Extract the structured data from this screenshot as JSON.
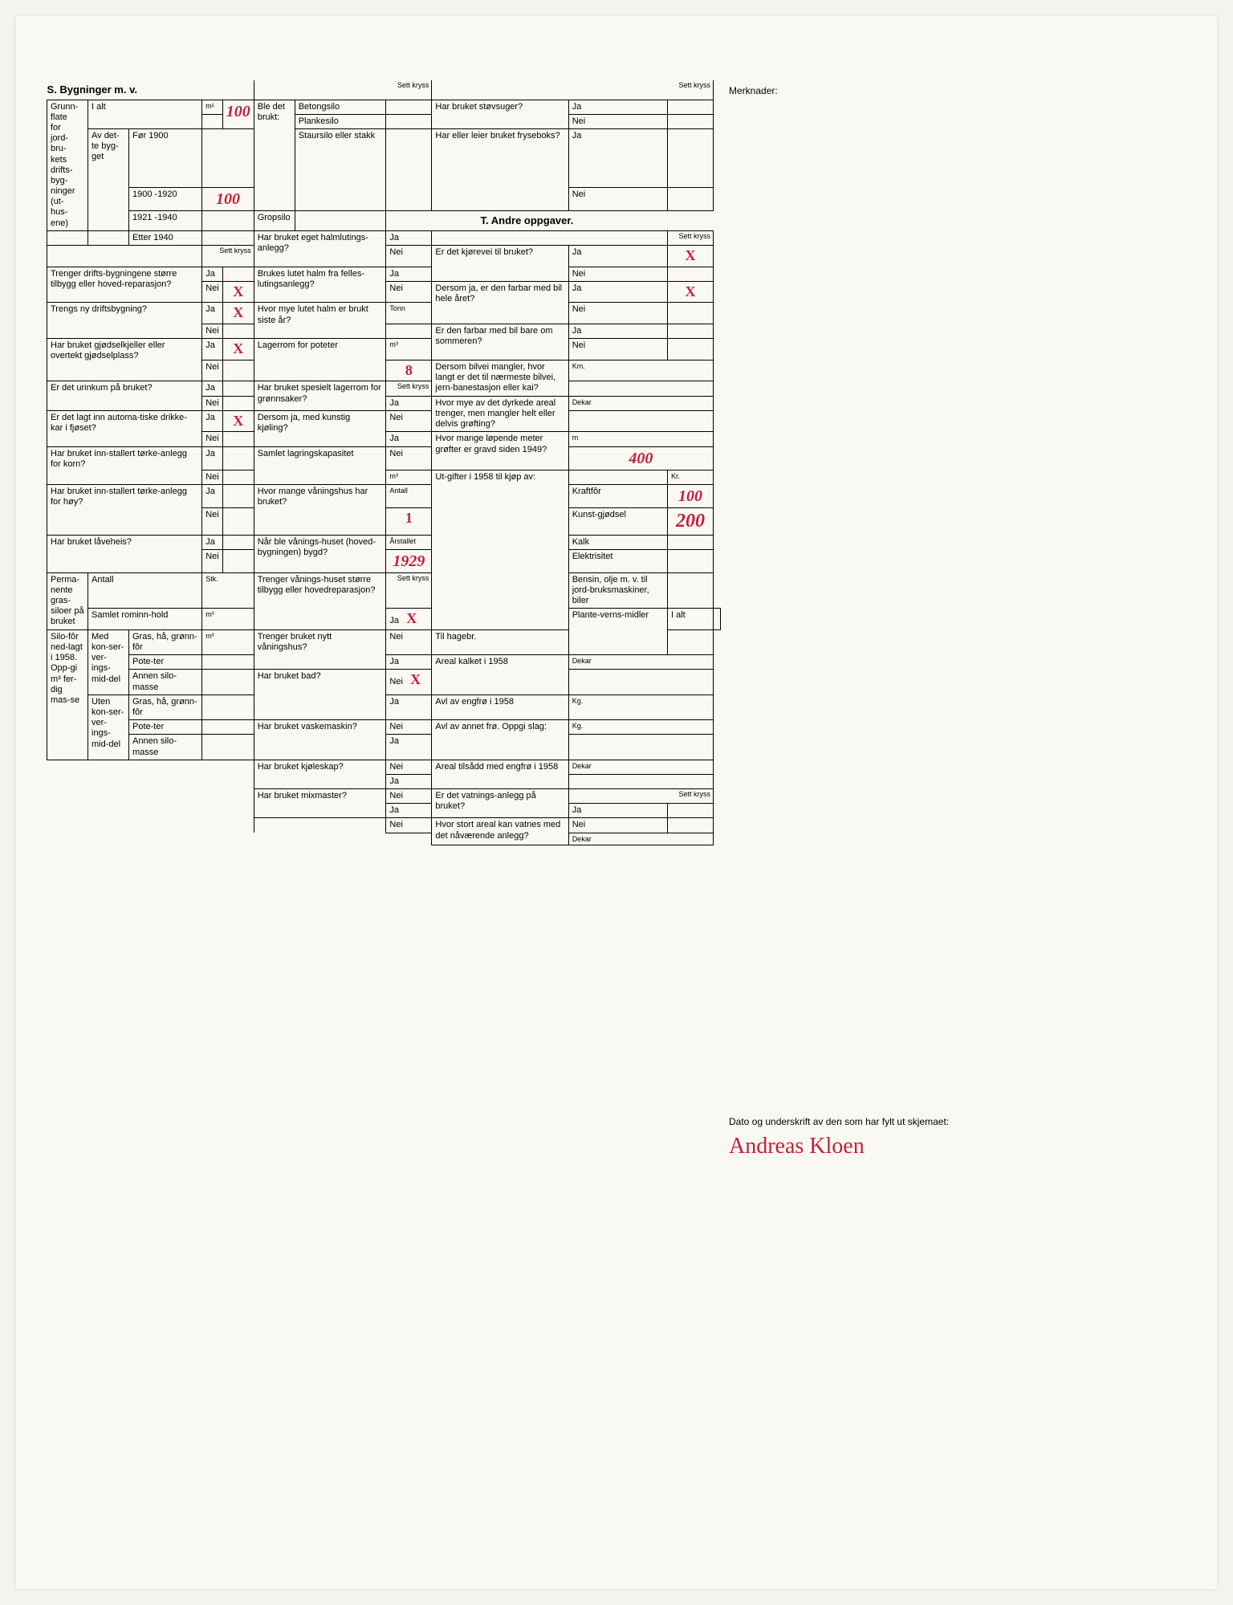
{
  "sectionS": {
    "title": "S. Bygninger m. v.",
    "grunnflate_label": "Grunn-\nflate\nfor\njord-\nbru-\nkets\ndrifts-\nbyg-\nninger\n(ut-\nhus-\nene)",
    "unit_m2": "m²",
    "i_alt": "I alt",
    "i_alt_val": "100",
    "av_dette_bygget": "Av det-te byg-get",
    "periods": {
      "for1900": "Før 1900",
      "p1900_1920": "1900 -1920",
      "p1900_1920_val": "100",
      "p1921_1940": "1921 -1940",
      "etter1940": "Etter 1940"
    },
    "sett_kryss": "Sett kryss",
    "q1": "Trenger drifts-bygningene større tilbygg eller hoved-reparasjon?",
    "q1_ja": "Ja",
    "q1_nei": "Nei",
    "q1_nei_mark": "X",
    "q2": "Trengs ny driftsbygning?",
    "q2_ja": "Ja",
    "q2_ja_mark": "X",
    "q2_nei": "Nei",
    "q3": "Har bruket gjødselkjeller eller overtekt gjødselplass?",
    "q3_ja": "Ja",
    "q3_ja_mark": "X",
    "q3_nei": "Nei",
    "q4": "Er det urinkum på bruket?",
    "q4_ja": "Ja",
    "q4_nei": "Nei",
    "q5": "Er det lagt inn automa-tiske drikke-kar i fjøset?",
    "q5_ja": "Ja",
    "q5_ja_mark": "X",
    "q5_nei": "Nei",
    "q6": "Har bruket inn-stallert tørke-anlegg for korn?",
    "q6_ja": "Ja",
    "q6_nei": "Nei",
    "q7": "Har bruket inn-stallert tørke-anlegg for høy?",
    "q7_ja": "Ja",
    "q7_nei": "Nei",
    "q8": "Har bruket låveheis?",
    "q8_ja": "Ja",
    "q8_nei": "Nei",
    "perm_silo": "Perma-nente gras-siloer på bruket",
    "antall": "Antall",
    "stk": "Stk.",
    "samlet_rom": "Samlet rominn-hold",
    "m3": "m³",
    "silofor": "Silo-fôr ned-lagt i 1958. Opp-gi m³ fer-dig mas-se",
    "med_kons": "Med kon-ser-ver-ings-mid-del",
    "uten_kons": "Uten kon-ser-ver-ings-mid-del",
    "gras": "Gras, hå, grønn-fôr",
    "poteter": "Pote-ter",
    "annen_silo": "Annen silo-masse"
  },
  "middle": {
    "sett_kryss": "Sett kryss",
    "ble_brukt": "Ble det brukt:",
    "betongsilo": "Betongsilo",
    "plankesilo": "Plankesilo",
    "staursilo": "Staursilo eller stakk",
    "gropsilo": "Gropsilo",
    "q1": "Har bruket eget halmlutings-anlegg?",
    "q2": "Brukes lutet halm fra felles-lutingsanlegg?",
    "q3": "Hvor mye lutet halm er brukt siste år?",
    "tonn": "Tonn",
    "q4": "Lagerrom for poteter",
    "q4_unit": "m³",
    "q4_val": "8",
    "q5": "Har bruket spesielt lagerrom for grønnsaker?",
    "q6": "Dersom ja, med kunstig kjøling?",
    "q7": "Samlet lagringskapasitet",
    "q7_unit": "m³",
    "q8": "Hvor mange våningshus har bruket?",
    "q8_unit": "Antall",
    "q8_val": "1",
    "q9": "Når ble vånings-huset (hoved-bygningen) bygd?",
    "q9_unit": "Årstallet",
    "q9_val": "1929",
    "q10": "Trenger vånings-huset større tilbygg eller hovedreparasjon?",
    "q10_ja_mark": "X",
    "q11": "Trenger bruket nytt våningshus?",
    "q11_nei_mark": "X",
    "q12": "Har bruket bad?",
    "q13": "Har bruket vaskemaskin?",
    "q14": "Har bruket kjøleskap?",
    "q15": "Har bruket mixmaster?",
    "ja": "Ja",
    "nei": "Nei"
  },
  "right": {
    "sett_kryss": "Sett kryss",
    "q1": "Har bruket støvsuger?",
    "q2": "Har eller leier bruket fryseboks?",
    "sectionT": "T. Andre oppgaver.",
    "q3": "Er det kjørevei til bruket?",
    "q3_ja_mark": "X",
    "q4": "Dersom ja, er den farbar med bil hele året?",
    "q4_ja_mark": "X",
    "q5": "Er den farbar med bil bare om sommeren?",
    "q6": "Dersom bilvei mangler, hvor langt er det til nærmeste bilvei, jern-banestasjon eller kai?",
    "q6_unit": "Km.",
    "q7": "Hvor mye av det dyrkede areal trenger, men mangler helt eller delvis grøfting?",
    "q7_unit": "Dekar",
    "q8": "Hvor mange løpende meter grøfter er gravd siden 1949?",
    "q8_unit": "m",
    "q8_val": "400",
    "utgifter": "Ut-gifter i 1958 til kjøp av:",
    "kraftfor": "Kraftfôr",
    "kraftfor_val": "100",
    "kunstgjodsel": "Kunst-gjødsel",
    "kunstgjodsel_val": "200",
    "kalk": "Kalk",
    "elektrisitet": "Elektrisitet",
    "bensin": "Bensin, olje m. v. til jord-bruksmaskiner, biler",
    "plante": "Plante-verns-midler",
    "i_alt": "I alt",
    "til_hagebr": "Til hagebr.",
    "kr": "Kr.",
    "q9": "Areal kalket i 1958",
    "q9_unit": "Dekar",
    "q10": "Avl av engfrø i 1958",
    "q10_unit": "Kg.",
    "q11": "Avl av annet frø. Oppgi slag:",
    "q11_unit": "Kg.",
    "q12": "Areal tilsådd med engfrø i 1958",
    "q12_unit": "Dekar",
    "q13": "Er det vatnings-anlegg på bruket?",
    "q14": "Hvor stort areal kan vatnes med det nåværende anlegg?",
    "q14_unit": "Dekar",
    "ja": "Ja",
    "nei": "Nei"
  },
  "merknader": "Merknader:",
  "signature_label": "Dato og underskrift av den som har fylt ut skjemaet:",
  "signature": "Andreas Kloen"
}
